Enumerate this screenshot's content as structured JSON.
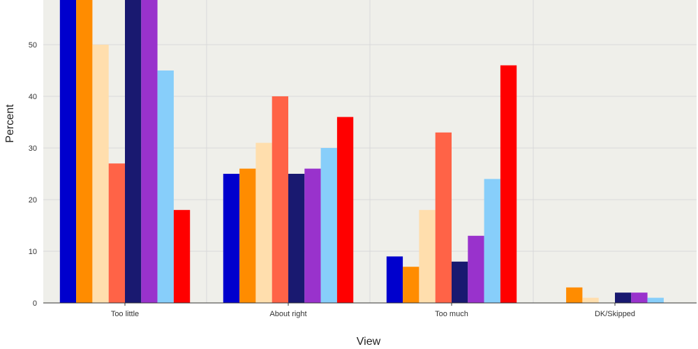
{
  "chart_data": {
    "type": "bar",
    "categories": [
      "Too little",
      "About right",
      "Too much",
      "DK/Skipped"
    ],
    "xlabel": "View",
    "ylabel": "Percent",
    "y_ticks": [
      0,
      10,
      20,
      30,
      40,
      50
    ],
    "y_visible_max": 59,
    "grid": true,
    "legend": "none",
    "series": [
      {
        "color": "#0000CD",
        "values": [
          61,
          25,
          9,
          0
        ]
      },
      {
        "color": "#FF8C00",
        "values": [
          61,
          26,
          7,
          3
        ]
      },
      {
        "color": "#FFDEAD",
        "values": [
          50,
          31,
          18,
          1
        ]
      },
      {
        "color": "#FF6347",
        "values": [
          27,
          40,
          33,
          0
        ]
      },
      {
        "color": "#191970",
        "values": [
          61,
          25,
          8,
          2
        ]
      },
      {
        "color": "#9932CC",
        "values": [
          61,
          26,
          13,
          2
        ]
      },
      {
        "color": "#87CEFA",
        "values": [
          45,
          30,
          24,
          1
        ]
      },
      {
        "color": "#FF0000",
        "values": [
          18,
          36,
          46,
          0
        ]
      }
    ]
  },
  "colors": {
    "panel_background": "#efefea",
    "gridline": "#d9d9d9",
    "axis": "#333333"
  }
}
